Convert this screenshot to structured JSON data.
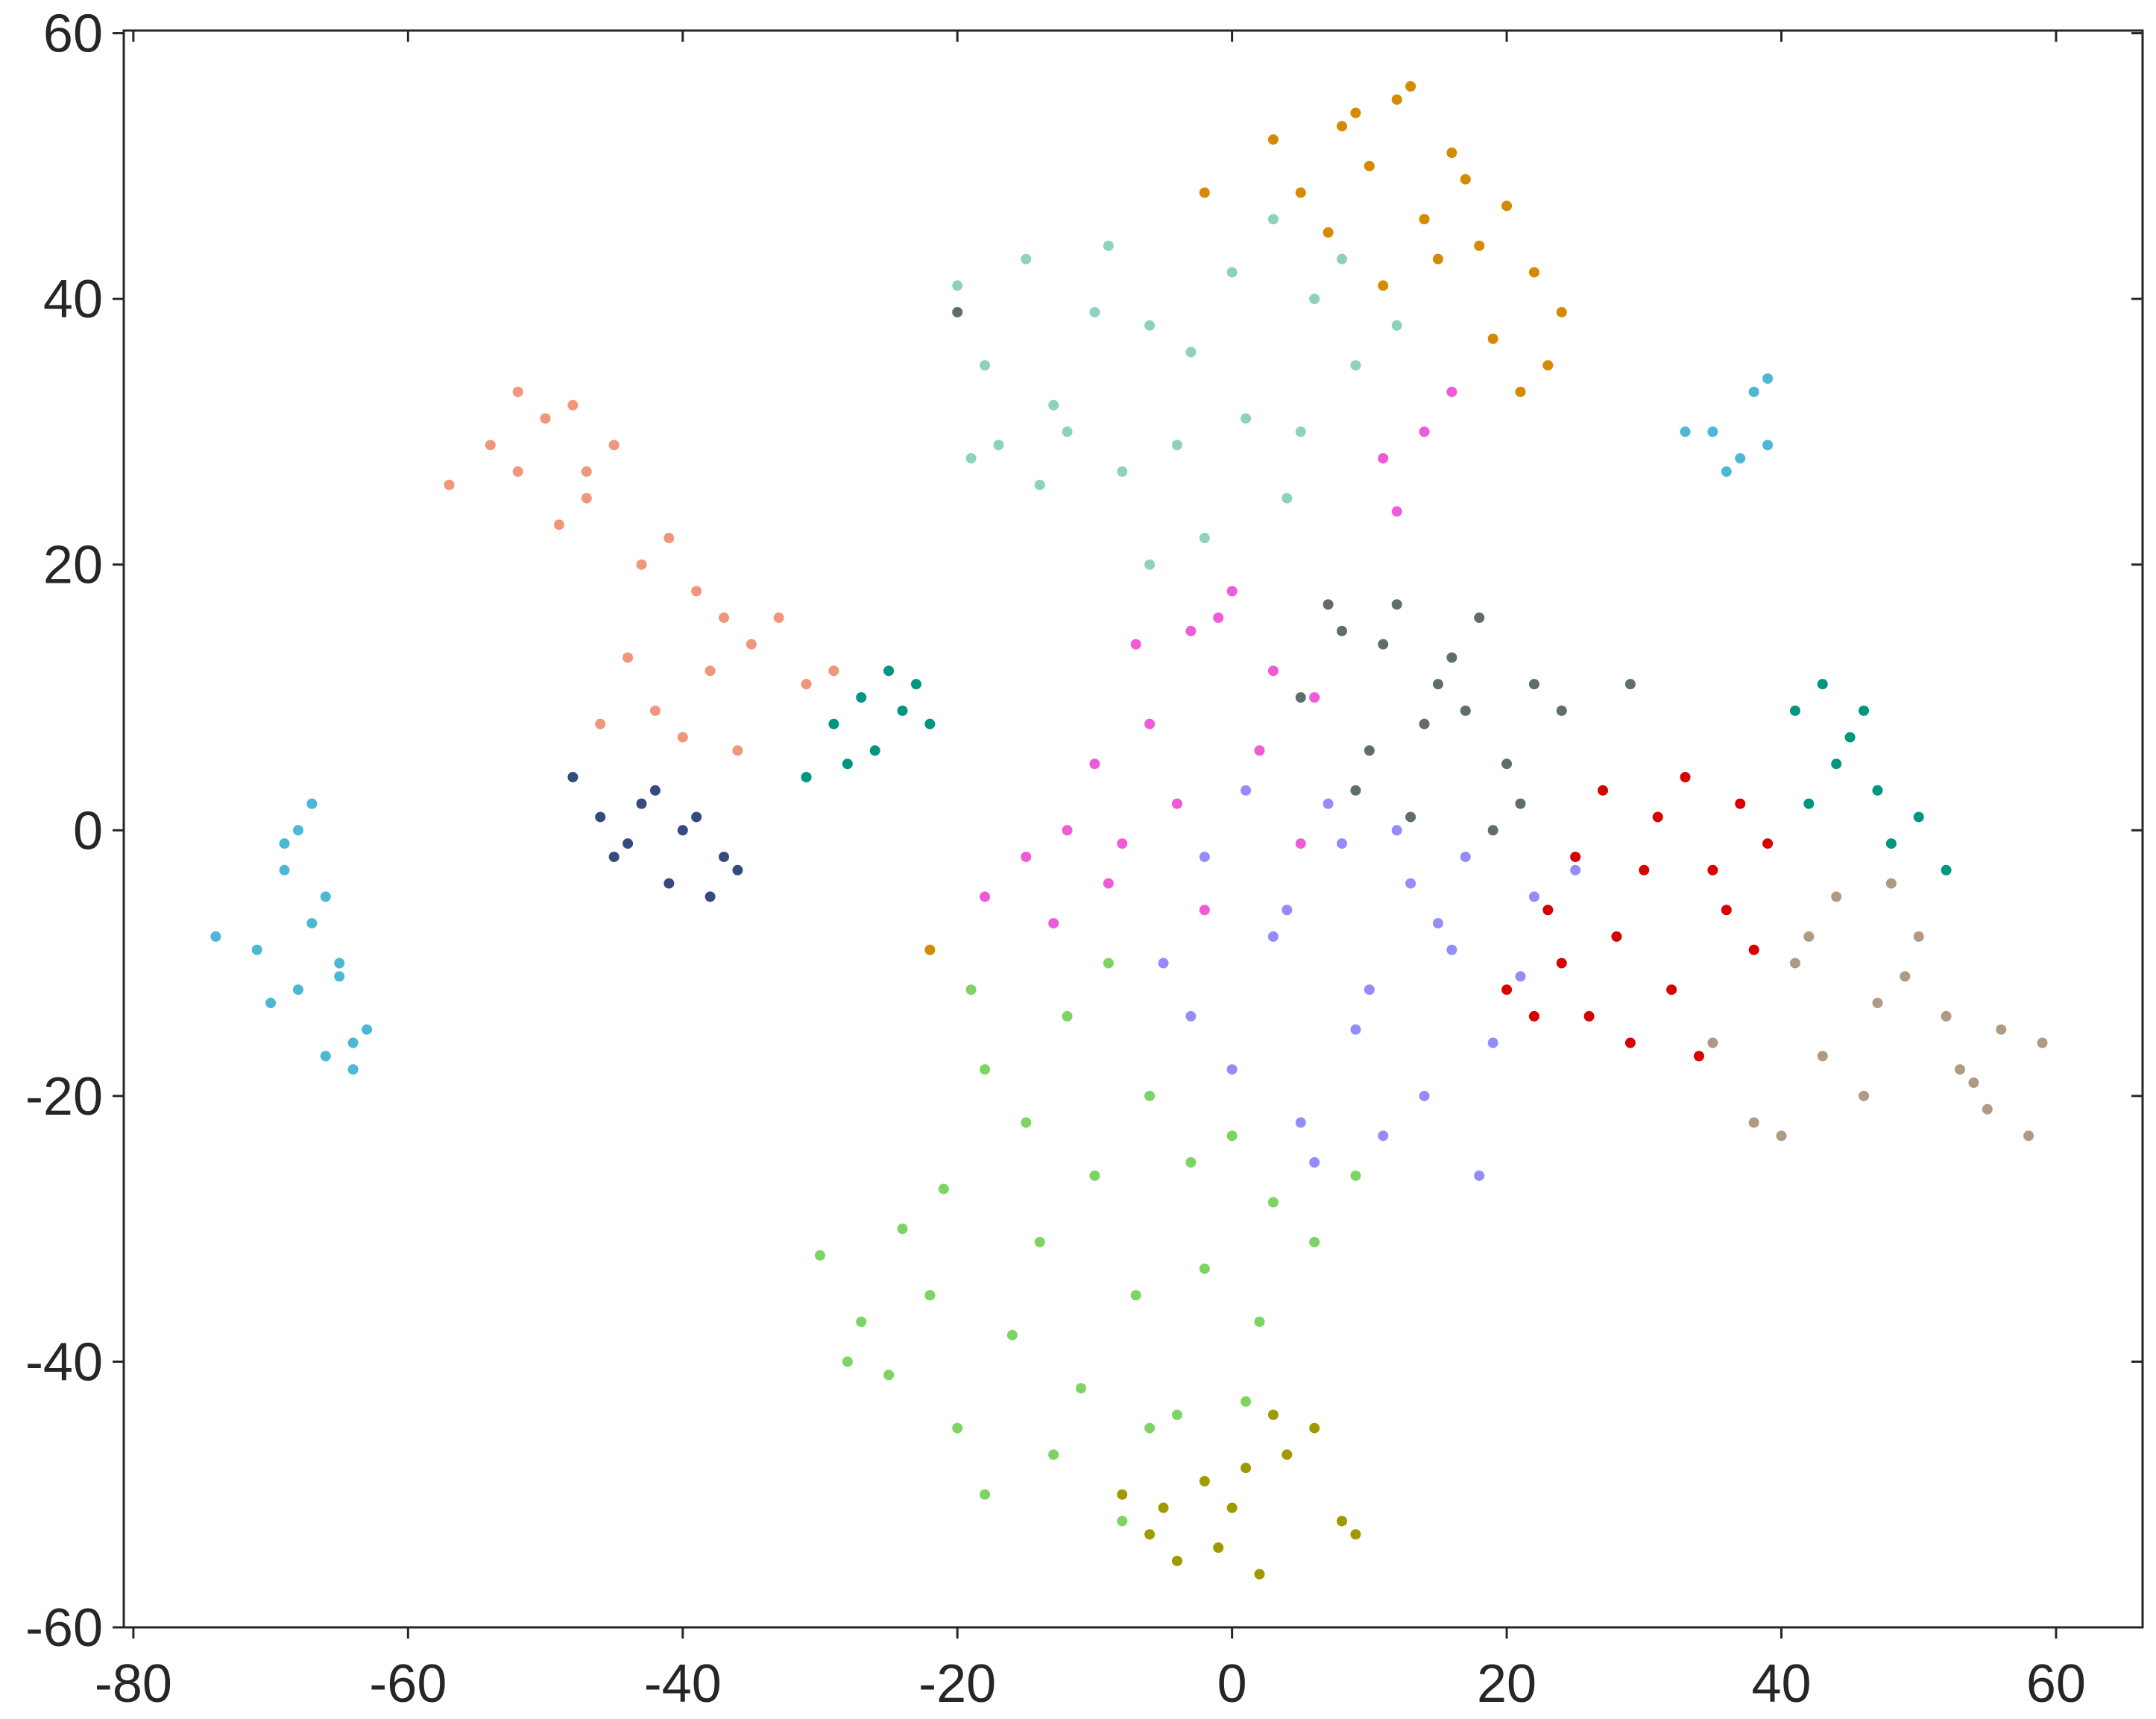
{
  "chart_data": {
    "type": "scatter",
    "xlim": [
      -80.7,
      66.3
    ],
    "ylim": [
      -60,
      60.2
    ],
    "xticks": [
      -80,
      -60,
      -40,
      -20,
      0,
      20,
      40,
      60
    ],
    "yticks": [
      -60,
      -40,
      -20,
      0,
      20,
      40,
      60
    ],
    "series": [
      {
        "color": "#4bb8d6",
        "x": [
          -74,
          -71,
          -69,
          -68,
          -67,
          -66,
          -65,
          -70,
          -68,
          -66,
          -64,
          -63,
          -67,
          -69,
          -65,
          -64,
          37,
          35,
          38,
          39,
          36,
          33,
          39
        ],
        "y": [
          -8,
          -9,
          -3,
          0,
          2,
          -5,
          -10,
          -13,
          -12,
          -17,
          -18,
          -15,
          -7,
          -1,
          -11,
          -16,
          28,
          30,
          33,
          29,
          27,
          30,
          34
        ]
      },
      {
        "color": "#f0967a",
        "x": [
          -57,
          -54,
          -52,
          -50,
          -48,
          -47,
          -45,
          -49,
          -43,
          -41,
          -39,
          -37,
          -44,
          -42,
          -38,
          -35,
          -33,
          -31,
          -29,
          -36,
          -40,
          -46,
          -52,
          -47
        ],
        "y": [
          26,
          29,
          33,
          31,
          32,
          27,
          29,
          23,
          20,
          22,
          18,
          16,
          13,
          9,
          12,
          14,
          16,
          11,
          12,
          6,
          7,
          8,
          27,
          25
        ]
      },
      {
        "color": "#344a80",
        "x": [
          -48,
          -46,
          -44,
          -42,
          -40,
          -38,
          -36,
          -45,
          -41,
          -37,
          -43,
          -39
        ],
        "y": [
          4,
          1,
          -1,
          3,
          0,
          -5,
          -3,
          -2,
          -4,
          -2,
          2,
          1
        ]
      },
      {
        "color": "#009680",
        "x": [
          -31,
          -29,
          -27,
          -25,
          -23,
          -22,
          -26,
          -28,
          -24,
          41,
          43,
          45,
          47,
          50,
          52,
          44,
          48,
          42,
          46
        ],
        "y": [
          4,
          8,
          10,
          12,
          11,
          8,
          6,
          5,
          9,
          9,
          11,
          7,
          3,
          1,
          -3,
          5,
          -1,
          2,
          9
        ]
      },
      {
        "color": "#8fd1c0",
        "x": [
          -20,
          -18,
          -15,
          -12,
          -9,
          -6,
          -3,
          0,
          3,
          6,
          9,
          12,
          -17,
          -13,
          -8,
          -4,
          1,
          5,
          -10,
          -2,
          4,
          -6,
          -14,
          8,
          -19
        ],
        "y": [
          41,
          35,
          43,
          30,
          44,
          38,
          36,
          42,
          46,
          40,
          35,
          38,
          29,
          32,
          27,
          29,
          31,
          30,
          39,
          22,
          25,
          20,
          26,
          43,
          28
        ]
      },
      {
        "color": "#d58a00",
        "x": [
          3,
          5,
          8,
          10,
          12,
          14,
          16,
          18,
          20,
          22,
          24,
          7,
          11,
          15,
          19,
          23,
          13,
          17,
          9,
          21,
          -2,
          -22
        ],
        "y": [
          52,
          48,
          53,
          50,
          55,
          46,
          51,
          44,
          47,
          42,
          39,
          45,
          41,
          43,
          37,
          35,
          56,
          49,
          54,
          33,
          48,
          -9
        ]
      },
      {
        "color": "#f05ad8",
        "x": [
          -18,
          -15,
          -12,
          -9,
          -6,
          -3,
          0,
          3,
          6,
          -10,
          -4,
          2,
          -13,
          -7,
          -1,
          5,
          11,
          14,
          16,
          12,
          -2,
          -8
        ],
        "y": [
          -5,
          -2,
          0,
          -4,
          8,
          15,
          18,
          12,
          10,
          5,
          2,
          6,
          -7,
          14,
          16,
          -1,
          28,
          30,
          33,
          24,
          -6,
          -1
        ]
      },
      {
        "color": "#5f6e6a",
        "x": [
          5,
          8,
          10,
          12,
          14,
          16,
          18,
          20,
          22,
          24,
          9,
          13,
          17,
          21,
          11,
          15,
          19,
          -20,
          29,
          7
        ],
        "y": [
          10,
          15,
          6,
          17,
          8,
          13,
          16,
          5,
          11,
          9,
          3,
          1,
          9,
          2,
          14,
          11,
          0,
          39,
          11,
          17
        ]
      },
      {
        "color": "#938cfa",
        "x": [
          -5,
          -2,
          1,
          4,
          7,
          10,
          13,
          16,
          19,
          22,
          25,
          0,
          5,
          9,
          14,
          18,
          -3,
          3,
          8,
          12,
          17,
          21,
          6,
          11,
          15
        ],
        "y": [
          -10,
          -2,
          3,
          -6,
          2,
          -12,
          -4,
          -9,
          -16,
          -5,
          -3,
          -18,
          -22,
          -15,
          -20,
          -26,
          -14,
          -8,
          -1,
          0,
          -2,
          -11,
          -25,
          -23,
          -7
        ]
      },
      {
        "color": "#7ed462",
        "x": [
          -30,
          -27,
          -24,
          -21,
          -18,
          -15,
          -12,
          -9,
          -6,
          -3,
          0,
          3,
          6,
          9,
          -25,
          -20,
          -16,
          -11,
          -7,
          -2,
          2,
          -18,
          -13,
          -8,
          -4,
          -22,
          -14,
          -6,
          -10,
          -19,
          -28,
          1
        ],
        "y": [
          -32,
          -37,
          -30,
          -27,
          -18,
          -22,
          -14,
          -10,
          -20,
          -25,
          -23,
          -28,
          -31,
          -26,
          -41,
          -45,
          -38,
          -42,
          -35,
          -33,
          -37,
          -50,
          -47,
          -52,
          -44,
          -35,
          -31,
          -45,
          -26,
          -12,
          -40,
          -43
        ]
      },
      {
        "color": "#a09a00",
        "x": [
          -8,
          -6,
          -4,
          -2,
          0,
          2,
          4,
          6,
          8,
          -1,
          1,
          3,
          9,
          -5
        ],
        "y": [
          -50,
          -53,
          -55,
          -49,
          -51,
          -56,
          -47,
          -45,
          -52,
          -54,
          -48,
          -44,
          -53,
          -51
        ]
      },
      {
        "color": "#d90000",
        "x": [
          20,
          23,
          25,
          27,
          29,
          31,
          33,
          35,
          37,
          39,
          24,
          28,
          32,
          36,
          26,
          30,
          34,
          38,
          22
        ],
        "y": [
          -12,
          -6,
          -2,
          3,
          -16,
          1,
          4,
          -3,
          2,
          -1,
          -10,
          -8,
          -12,
          -6,
          -14,
          -3,
          -17,
          -9,
          -14
        ]
      },
      {
        "color": "#b09a84",
        "x": [
          35,
          38,
          41,
          44,
          47,
          50,
          53,
          56,
          59,
          40,
          43,
          46,
          49,
          52,
          55,
          58,
          42,
          48,
          54
        ],
        "y": [
          -16,
          -22,
          -10,
          -5,
          -13,
          -8,
          -18,
          -15,
          -16,
          -23,
          -17,
          -20,
          -11,
          -14,
          -21,
          -23,
          -8,
          -4,
          -19
        ]
      }
    ]
  }
}
